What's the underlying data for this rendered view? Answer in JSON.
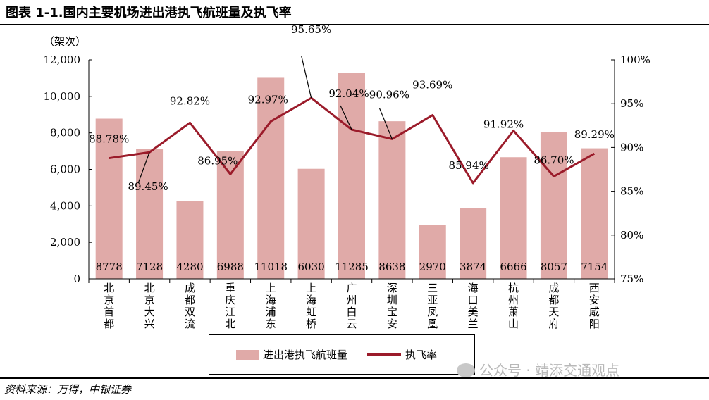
{
  "header": {
    "title": "图表 1-1.国内主要机场进出港执飞航班量及执飞率"
  },
  "footer": {
    "source": "资料来源：万得，中银证券"
  },
  "watermark": {
    "text": "公众号 · 靖添交通观点"
  },
  "colors": {
    "bar": "#e0aaa8",
    "line": "#9b1b2a",
    "text": "#000000"
  },
  "chart_data": {
    "type": "bar",
    "categories": [
      "北京首都",
      "北京大兴",
      "成都双流",
      "重庆江北",
      "上海浦东",
      "上海虹桥",
      "广州白云",
      "深圳宝安",
      "三亚凤凰",
      "海口美兰",
      "杭州萧山",
      "成都天府",
      "西安咸阳"
    ],
    "series": [
      {
        "name": "进出港执飞航班量",
        "type": "bar",
        "axis": "left",
        "values": [
          8778,
          7128,
          4280,
          6988,
          11018,
          6030,
          11285,
          8638,
          2970,
          3874,
          6666,
          8057,
          7154
        ],
        "labels": [
          "8778",
          "7128",
          "4280",
          "6988",
          "11018",
          "6030",
          "11285",
          "8638",
          "2970",
          "3874",
          "6666",
          "8057",
          "7154"
        ]
      },
      {
        "name": "执飞率",
        "type": "line",
        "axis": "right",
        "values": [
          88.78,
          89.45,
          92.82,
          86.95,
          92.97,
          95.65,
          92.04,
          90.96,
          93.69,
          85.94,
          91.92,
          86.7,
          89.29
        ],
        "labels": [
          "88.78%",
          "89.45%",
          "92.82%",
          "86.95%",
          "92.97%",
          "95.65%",
          "92.04%",
          "90.96%",
          "93.69%",
          "85.94%",
          "91.92%",
          "86.70%",
          "89.29%"
        ]
      }
    ],
    "y_left": {
      "unit_label": "（架次）",
      "ylim": [
        0,
        12000
      ],
      "ticks": [
        "0",
        "2,000",
        "4,000",
        "6,000",
        "8,000",
        "10,000",
        "12,000"
      ]
    },
    "y_right": {
      "ylim": [
        75,
        100
      ],
      "ticks": [
        "75%",
        "80%",
        "85%",
        "90%",
        "95%",
        "100%"
      ]
    },
    "grid": false,
    "legend_position": "bottom"
  }
}
